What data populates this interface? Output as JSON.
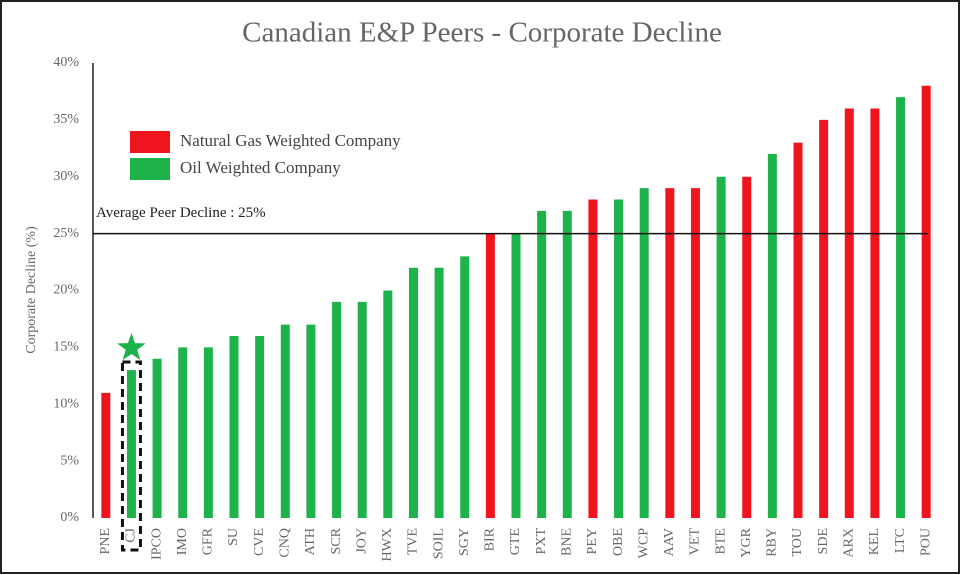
{
  "chart_data": {
    "type": "bar",
    "title": "Canadian E&P Peers - Corporate Decline",
    "y_label": "Corporate Decline (%)",
    "categories": [
      "PNE",
      "CJ",
      "IPCO",
      "IMO",
      "GFR",
      "SU",
      "CVE",
      "CNQ",
      "ATH",
      "SCR",
      "JOY",
      "HWX",
      "TVE",
      "SOIL",
      "SGY",
      "BIR",
      "GTE",
      "PXT",
      "BNE",
      "PEY",
      "OBE",
      "WCP",
      "AAV",
      "VET",
      "BTE",
      "YGR",
      "RBY",
      "TOU",
      "SDE",
      "ARX",
      "KEL",
      "LTC",
      "POU"
    ],
    "series": [
      {
        "name": "Natural Gas Weighted Company",
        "color": "#f0141e",
        "values": [
          11,
          null,
          null,
          null,
          null,
          null,
          null,
          null,
          null,
          null,
          null,
          null,
          null,
          null,
          null,
          25,
          null,
          null,
          null,
          28,
          null,
          null,
          29,
          29,
          null,
          30,
          null,
          33,
          35,
          36,
          36,
          null,
          38
        ]
      },
      {
        "name": "Oil Weighted Company",
        "color": "#1db34a",
        "values": [
          null,
          13,
          14,
          15,
          15,
          16,
          16,
          17,
          17,
          19,
          19,
          20,
          22,
          22,
          23,
          null,
          25,
          27,
          27,
          null,
          28,
          29,
          null,
          null,
          30,
          null,
          32,
          null,
          null,
          null,
          null,
          37,
          null
        ]
      }
    ],
    "reference_line": {
      "value": 25,
      "label": "Average Peer Decline : 25%"
    },
    "ylim": [
      0,
      40
    ],
    "yticks": [
      {
        "value": 0,
        "label": "0%"
      },
      {
        "value": 5,
        "label": "5%"
      },
      {
        "value": 10,
        "label": "10%"
      },
      {
        "value": 15,
        "label": "15%"
      },
      {
        "value": 20,
        "label": "20%"
      },
      {
        "value": 25,
        "label": "25%"
      },
      {
        "value": 30,
        "label": "30%"
      },
      {
        "value": 35,
        "label": "35%"
      },
      {
        "value": 40,
        "label": "40%"
      }
    ],
    "grid": false,
    "legend": "upper left"
  }
}
